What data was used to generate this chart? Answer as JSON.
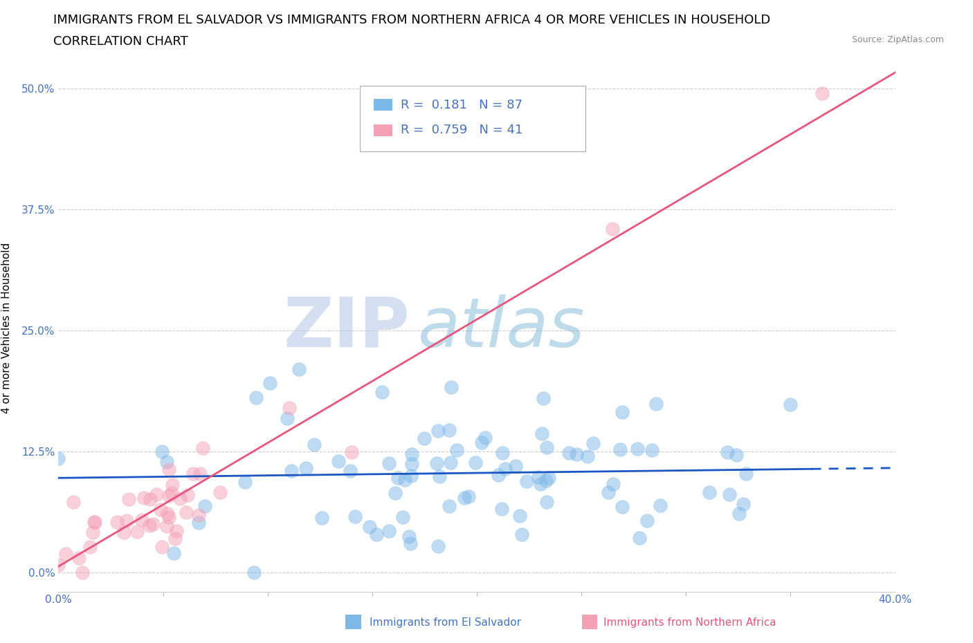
{
  "title_line1": "IMMIGRANTS FROM EL SALVADOR VS IMMIGRANTS FROM NORTHERN AFRICA 4 OR MORE VEHICLES IN HOUSEHOLD",
  "title_line2": "CORRELATION CHART",
  "source": "Source: ZipAtlas.com",
  "ylabel": "4 or more Vehicles in Household",
  "xlim": [
    0.0,
    0.4
  ],
  "ylim": [
    -0.02,
    0.525
  ],
  "yticks": [
    0.0,
    0.125,
    0.25,
    0.375,
    0.5
  ],
  "ytick_labels": [
    "0.0%",
    "12.5%",
    "25.0%",
    "37.5%",
    "50.0%"
  ],
  "xticks": [
    0.0,
    0.4
  ],
  "xtick_labels": [
    "0.0%",
    "40.0%"
  ],
  "grid_color": "#cccccc",
  "watermark_zip": "ZIP",
  "watermark_atlas": "atlas",
  "blue_color": "#7eb8e8",
  "pink_color": "#f4a0b5",
  "blue_line_color": "#1a56c4",
  "pink_line_color": "#e8547a",
  "legend_R1": "0.181",
  "legend_N1": "87",
  "legend_R2": "0.759",
  "legend_N2": "41",
  "label1": "Immigrants from El Salvador",
  "label2": "Immigrants from Northern Africa",
  "title_fontsize": 13,
  "axis_label_fontsize": 11,
  "tick_fontsize": 11,
  "tick_color": "#4472c4",
  "seed": 42,
  "N1": 87,
  "N2": 41,
  "R1": 0.181,
  "R2": 0.759
}
